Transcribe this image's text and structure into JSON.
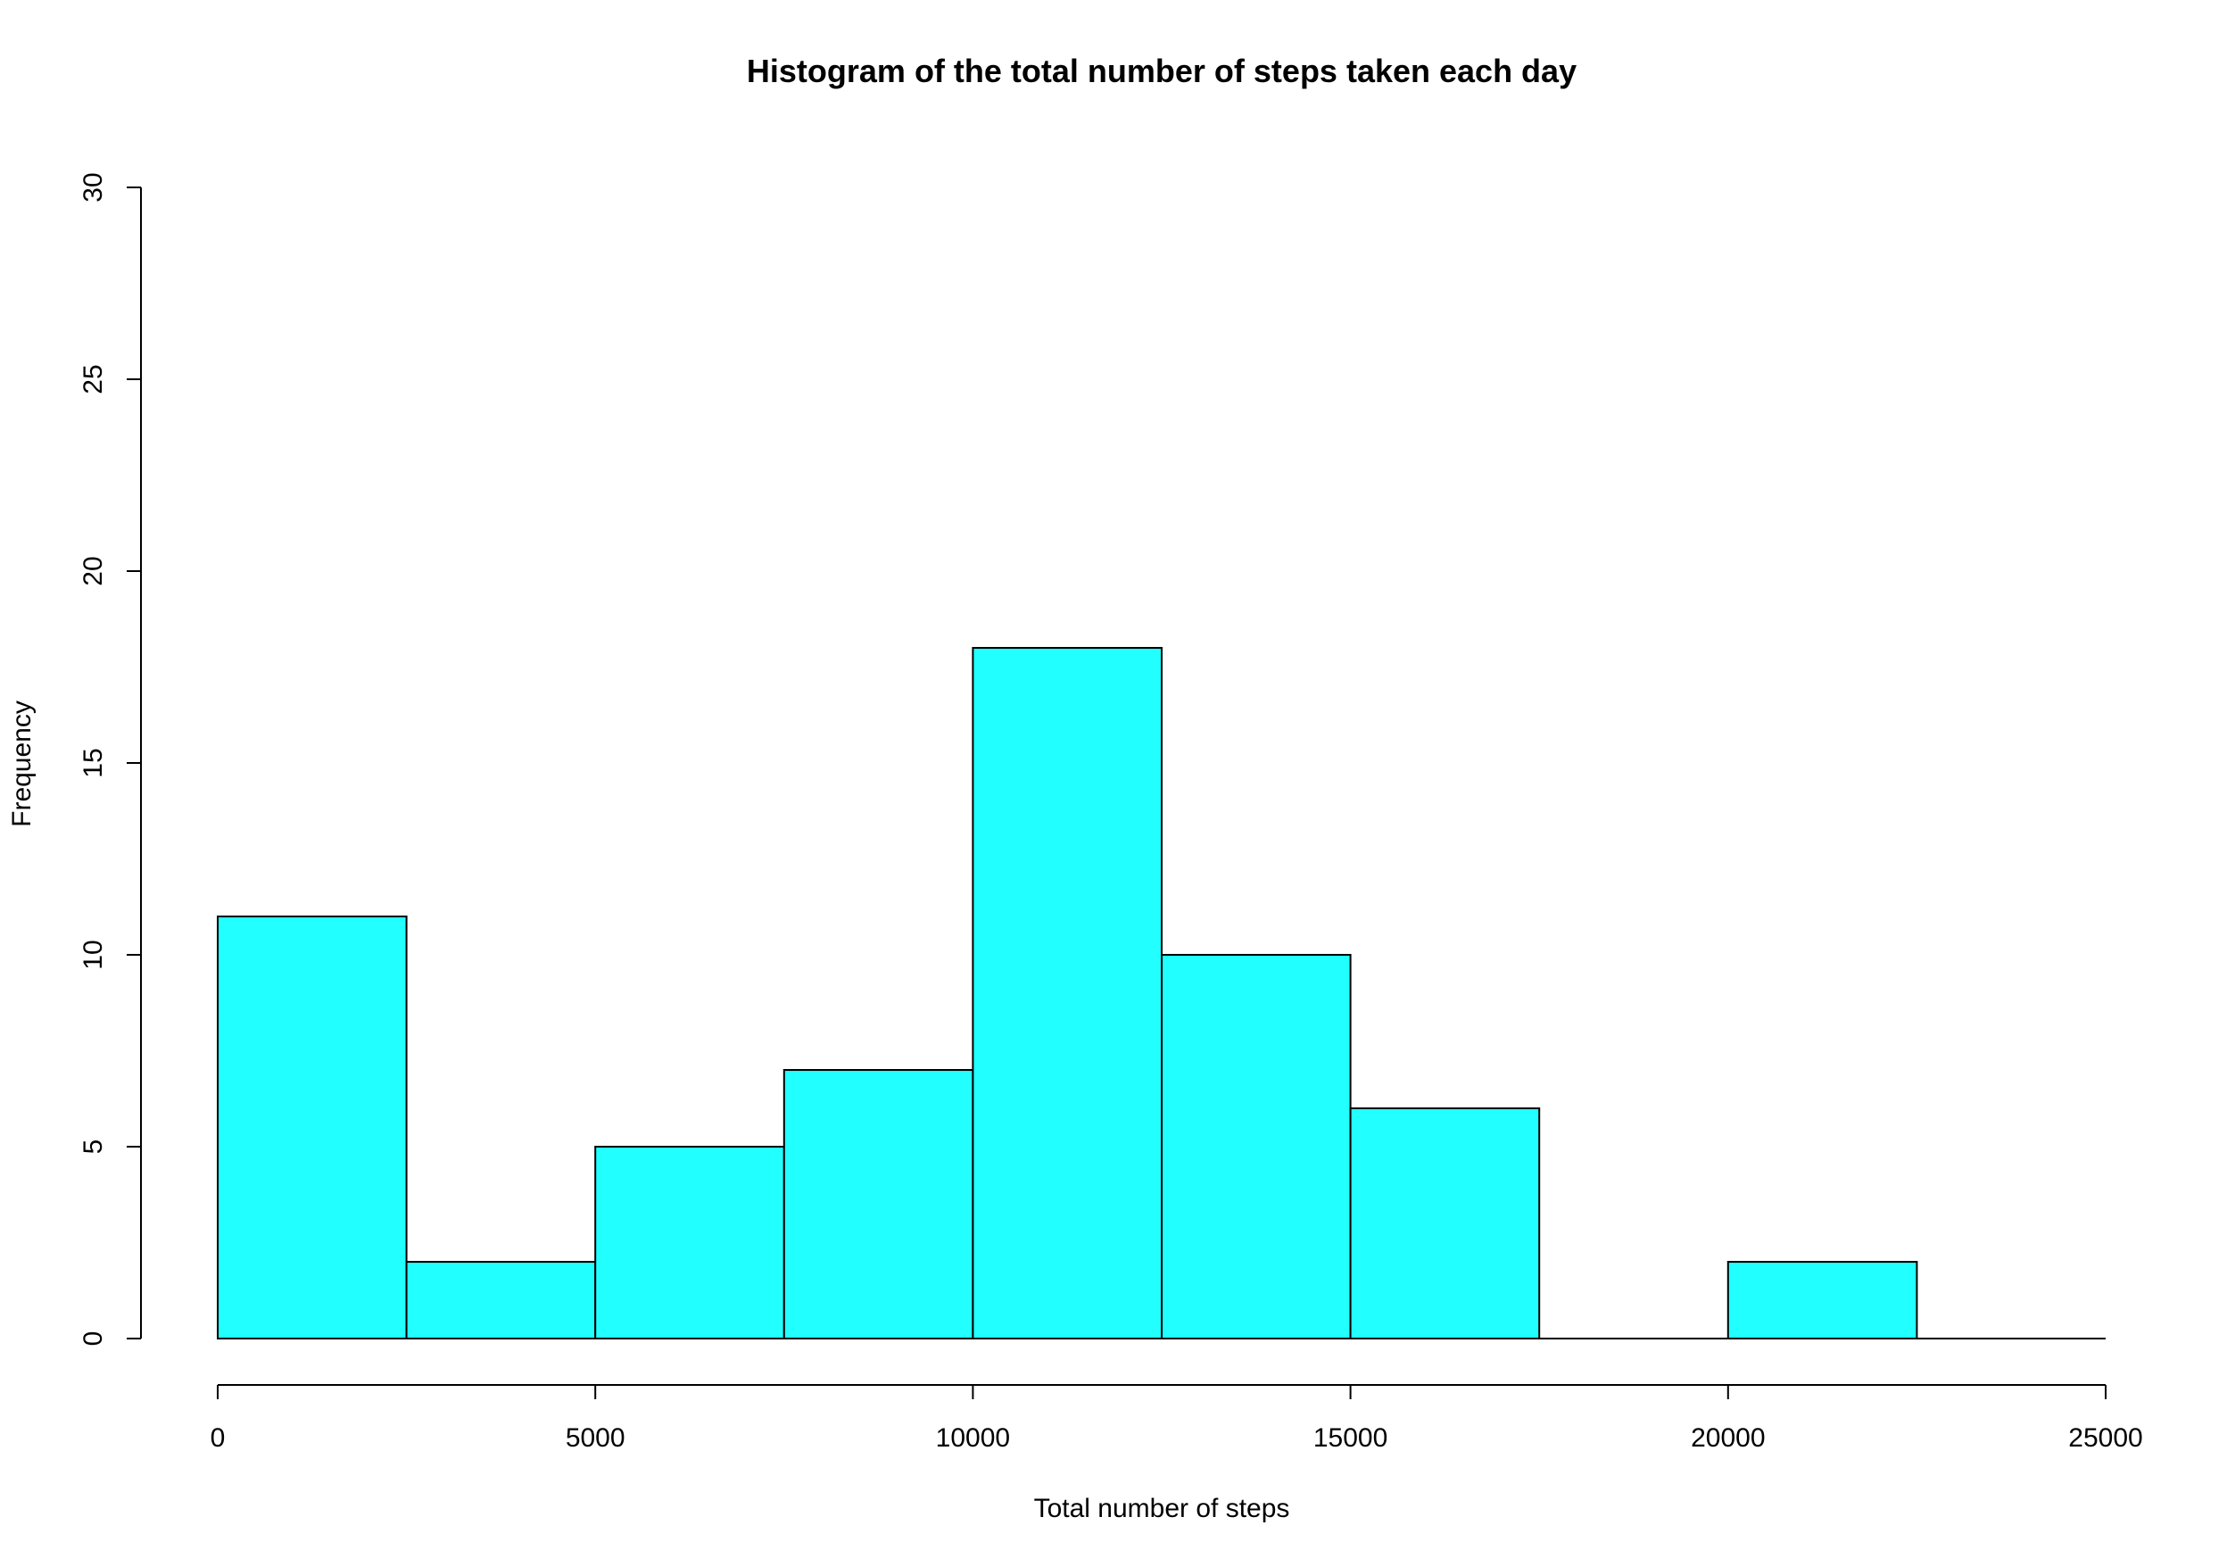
{
  "chart_data": {
    "type": "bar",
    "title": "Histogram of the total number of steps taken each day",
    "xlabel": "Total number of steps",
    "ylabel": "Frequency",
    "bins": [
      {
        "from": 0,
        "to": 2500,
        "count": 11
      },
      {
        "from": 2500,
        "to": 5000,
        "count": 2
      },
      {
        "from": 5000,
        "to": 7500,
        "count": 5
      },
      {
        "from": 7500,
        "to": 10000,
        "count": 7
      },
      {
        "from": 10000,
        "to": 12500,
        "count": 18
      },
      {
        "from": 12500,
        "to": 15000,
        "count": 10
      },
      {
        "from": 15000,
        "to": 17500,
        "count": 6
      },
      {
        "from": 17500,
        "to": 20000,
        "count": 0
      },
      {
        "from": 20000,
        "to": 22500,
        "count": 2
      },
      {
        "from": 22500,
        "to": 25000,
        "count": 0
      }
    ],
    "xlim": [
      0,
      25000
    ],
    "ylim": [
      0,
      30
    ],
    "x_ticks": [
      "0",
      "5000",
      "10000",
      "15000",
      "20000",
      "25000"
    ],
    "y_ticks": [
      "0",
      "5",
      "10",
      "15",
      "20",
      "25",
      "30"
    ],
    "bar_color": "#22ffff",
    "edge_color": "#000000",
    "grid": false,
    "legend": "none"
  }
}
